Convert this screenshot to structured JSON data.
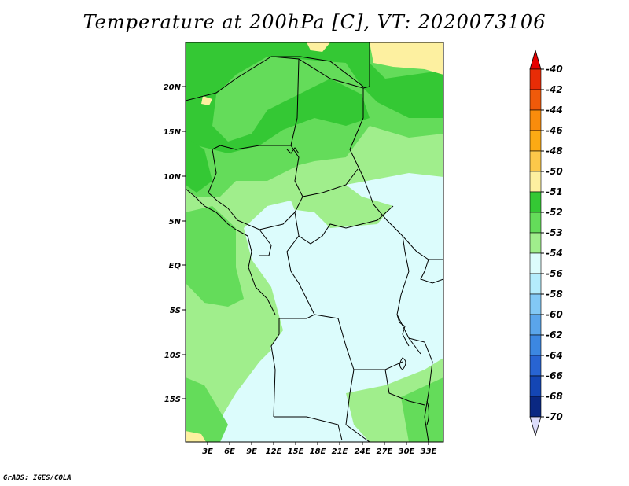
{
  "title": "Temperature at 200hPa [C], VT: 2020073106",
  "footer": "GrADS: IGES/COLA",
  "map": {
    "lat_ticks": [
      "20N",
      "15N",
      "10N",
      "5N",
      "EQ",
      "5S",
      "10S",
      "15S"
    ],
    "lon_ticks": [
      "3E",
      "6E",
      "9E",
      "12E",
      "15E",
      "18E",
      "21E",
      "24E",
      "27E",
      "30E",
      "33E"
    ]
  },
  "legend": {
    "labels": [
      "-40",
      "-42",
      "-44",
      "-46",
      "-48",
      "-50",
      "-51",
      "-52",
      "-53",
      "-54",
      "-56",
      "-58",
      "-60",
      "-62",
      "-64",
      "-66",
      "-68",
      "-70"
    ],
    "colors": [
      "#e82c06",
      "#f05a0a",
      "#f98c0c",
      "#fcaa14",
      "#fcc84a",
      "#fdf0a0",
      "#34c834",
      "#64dc5a",
      "#a0ee8c",
      "#dcfcfc",
      "#b4ecfc",
      "#82c8f5",
      "#5aa5eb",
      "#3c87e1",
      "#2864d2",
      "#1446b4",
      "#0a2882",
      "#000064"
    ],
    "top_arrow_color": "#e60000",
    "bottom_arrow_color": "#dcdcfa"
  }
}
